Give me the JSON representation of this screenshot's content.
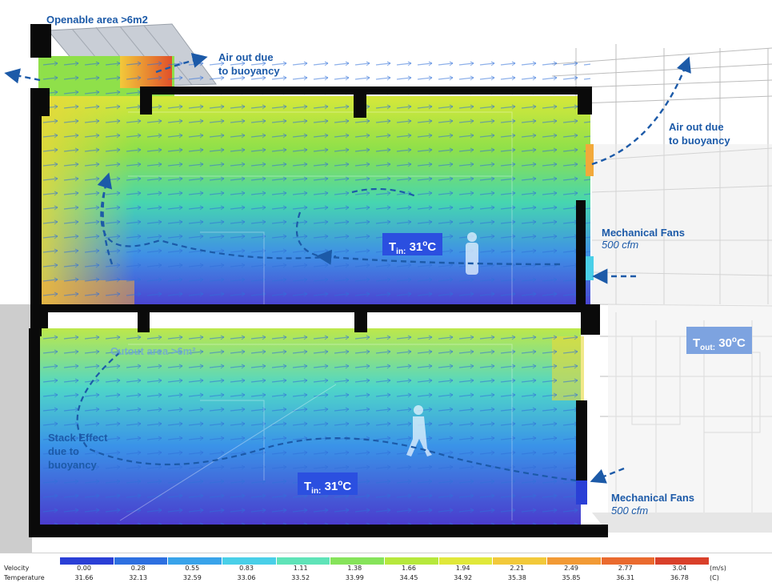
{
  "labels": {
    "openable_area": "Openable area >6m2",
    "air_out_1_line1": "Air out due",
    "air_out_1_line2": "to buoyancy",
    "air_out_2_line1": "Air out due",
    "air_out_2_line2": "to buoyancy",
    "mech_fans_upper": "Mechanical Fans",
    "mech_fans_upper_cfm": "500 cfm",
    "mech_fans_lower": "Mechanical Fans",
    "mech_fans_lower_cfm": "500 cfm",
    "cutout_area": "Cutout area >6m²",
    "stack_effect_line1": "Stack Effect",
    "stack_effect_line2": "due to",
    "stack_effect_line3": "buoyancy"
  },
  "temperature_tags": {
    "upper_in": {
      "prefix": "T",
      "subscript": "in:",
      "value": "31",
      "unit": "C",
      "degree": "o"
    },
    "lower_in": {
      "prefix": "T",
      "subscript": "in:",
      "value": "31",
      "unit": "C",
      "degree": "o"
    },
    "outside": {
      "prefix": "T",
      "subscript": "out:",
      "value": "30",
      "unit": "C",
      "degree": "o"
    }
  },
  "legend": {
    "row1_label": "Velocity",
    "row2_label": "Temperature",
    "velocity_unit": "(m/s)",
    "temperature_unit": "(C)",
    "velocity_values": [
      "0.00",
      "0.28",
      "0.55",
      "0.83",
      "1.11",
      "1.38",
      "1.66",
      "1.94",
      "2.21",
      "2.49",
      "2.77",
      "3.04"
    ],
    "temperature_values": [
      "31.66",
      "32.13",
      "32.59",
      "33.06",
      "33.52",
      "33.99",
      "34.45",
      "34.92",
      "35.38",
      "35.85",
      "36.31",
      "36.78"
    ],
    "colors": [
      "#2a3fd6",
      "#2d6fe0",
      "#39a3ea",
      "#49cfe8",
      "#5fe3b8",
      "#86e35a",
      "#b6e83c",
      "#e0e83a",
      "#f2c93a",
      "#f29a35",
      "#ea6a2e",
      "#d9402a"
    ]
  },
  "colors": {
    "label_blue": "#1c5aa8",
    "tag_blue": "#2b4fe0",
    "tag_outside": "#7da3e0",
    "wall": "#0a0a0a"
  }
}
